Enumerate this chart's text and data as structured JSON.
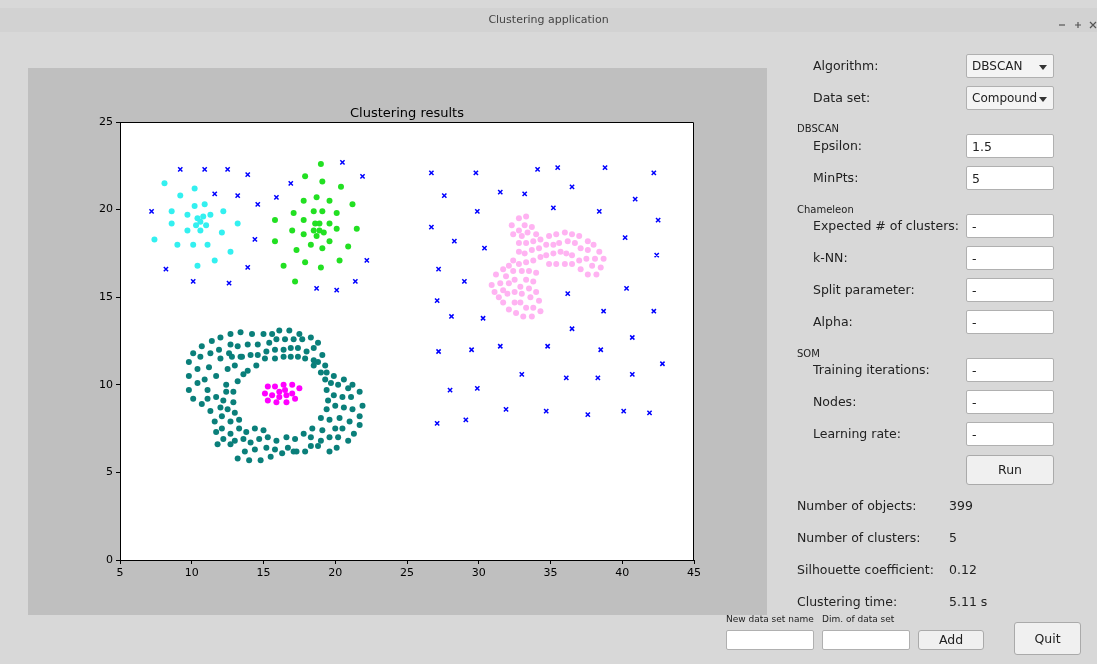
{
  "chart_data": [
    {
      "type": "scatter",
      "title": "Clustering results",
      "marker": "circle",
      "grid": false,
      "xlim": [
        5,
        45
      ],
      "xticks": [
        5,
        10,
        15,
        20,
        25,
        30,
        35,
        40,
        45
      ],
      "ylim": [
        0,
        25
      ],
      "yticks": [
        0,
        5,
        10,
        15,
        20,
        25
      ],
      "series": [
        {
          "color": "#0000ff",
          "marker": "cross",
          "x": [
            9.2,
            10.9,
            12.5,
            13.9,
            11.6,
            13.2,
            14.6,
            7.2,
            14.4,
            8.2,
            10.1,
            12.6,
            13.9,
            16.9,
            15.9,
            20.5,
            21.9,
            22.2,
            21.4,
            18.7,
            20.1,
            26.7,
            29.8,
            34.1,
            35.5,
            38.8,
            42.2,
            27.6,
            31.5,
            33.2,
            36.5,
            40.9,
            29.9,
            35.2,
            38.4,
            42.5,
            26.7,
            40.2,
            28.3,
            30.4,
            42.4,
            27.2,
            29.0,
            36.2,
            40.3,
            27.1,
            28.1,
            30.3,
            38.7,
            42.2,
            36.5,
            40.7,
            27.2,
            29.5,
            31.5,
            34.8,
            38.5,
            42.8,
            33.0,
            36.1,
            38.3,
            40.7,
            28.0,
            29.9,
            31.9,
            34.7,
            37.6,
            40.1,
            41.9,
            27.1,
            29.1
          ],
          "values": [
            22.3,
            22.3,
            22.3,
            22.0,
            20.9,
            20.8,
            20.3,
            19.9,
            18.3,
            16.6,
            15.9,
            15.8,
            16.7,
            21.5,
            20.7,
            22.7,
            21.9,
            17.1,
            15.9,
            15.5,
            15.4,
            22.1,
            22.1,
            22.3,
            22.4,
            22.4,
            22.1,
            20.8,
            21.0,
            20.9,
            21.3,
            20.6,
            19.9,
            20.1,
            19.9,
            19.4,
            19.0,
            18.4,
            18.2,
            17.8,
            17.4,
            16.6,
            15.9,
            15.2,
            15.5,
            14.8,
            13.9,
            13.8,
            14.2,
            14.2,
            13.2,
            12.7,
            11.9,
            12.0,
            12.2,
            12.2,
            12.0,
            11.2,
            10.6,
            10.4,
            10.4,
            10.6,
            9.7,
            9.8,
            8.6,
            8.5,
            8.3,
            8.5,
            8.4,
            7.8,
            8.0
          ]
        },
        {
          "color": "#33f0f0",
          "x": [
            8.1,
            10.2,
            9.2,
            10.2,
            10.9,
            8.6,
            9.7,
            12.2,
            11.3,
            10.4,
            10.8,
            10.6,
            8.6,
            10.3,
            11.0,
            13.2,
            9.7,
            10.6,
            12.1,
            7.4,
            9.0,
            10.1,
            11.1,
            12.7,
            11.6,
            10.4
          ],
          "values": [
            21.5,
            21.2,
            20.8,
            20.2,
            20.3,
            19.9,
            19.7,
            19.9,
            19.7,
            19.5,
            19.6,
            19.3,
            19.2,
            19.1,
            19.1,
            19.2,
            18.8,
            18.8,
            18.7,
            18.3,
            18.0,
            18.0,
            18.0,
            17.6,
            17.1,
            16.8
          ]
        },
        {
          "color": "#22e022",
          "x": [
            19.0,
            17.9,
            19.1,
            20.4,
            17.8,
            18.7,
            19.6,
            21.2,
            17.1,
            18.5,
            19.1,
            20.1,
            15.8,
            17.8,
            18.6,
            18.9,
            19.6,
            17.0,
            18.5,
            18.9,
            19.2,
            20.1,
            21.5,
            17.8,
            18.7,
            15.8,
            18.3,
            19.6,
            17.3,
            19.1,
            20.9,
            20.3,
            16.4,
            17.9,
            19.0,
            17.2
          ],
          "values": [
            22.6,
            21.9,
            21.6,
            21.3,
            20.5,
            20.7,
            20.5,
            20.3,
            19.8,
            19.9,
            19.9,
            19.8,
            19.4,
            19.4,
            19.2,
            19.2,
            19.2,
            18.8,
            18.8,
            18.8,
            18.7,
            18.9,
            18.9,
            18.6,
            18.5,
            18.2,
            18.0,
            18.2,
            17.7,
            17.8,
            17.9,
            17.1,
            16.8,
            17.0,
            16.7,
            15.9
          ]
        },
        {
          "color": "#0a7f7a",
          "x": [
            12.7,
            13.4,
            14.2,
            15.0,
            15.6,
            16.1,
            16.8,
            17.5,
            18.3,
            12.0,
            11.4,
            10.7,
            12.7,
            13.2,
            13.9,
            14.6,
            15.4,
            15.9,
            16.5,
            17.1,
            17.7,
            18.8,
            10.1,
            11.3,
            11.9,
            12.6,
            13.4,
            14.1,
            14.6,
            15.2,
            15.8,
            16.4,
            16.9,
            17.4,
            18.0,
            18.5,
            19.1,
            9.8,
            10.6,
            12.0,
            12.8,
            13.5,
            15.1,
            15.8,
            16.4,
            16.9,
            17.4,
            17.9,
            18.5,
            18.8,
            19.3,
            10.4,
            11.2,
            12.5,
            13.0,
            13.9,
            14.5,
            18.5,
            19.0,
            19.4,
            19.9,
            9.8,
            10.9,
            11.7,
            13.2,
            13.6,
            19.3,
            19.7,
            20.6,
            21.2,
            10.4,
            12.4,
            9.8,
            11.1,
            11.7,
            12.4,
            12.9,
            19.4,
            20.2,
            20.9,
            21.7,
            10.1,
            10.7,
            11.1,
            12.2,
            12.9,
            19.9,
            20.5,
            21.1,
            19.5,
            21.9,
            11.3,
            12.0,
            12.5,
            13.0,
            19.4,
            20.0,
            20.6,
            21.2,
            11.6,
            12.1,
            12.7,
            13.3,
            19.0,
            19.6,
            20.3,
            21.0,
            21.7,
            21.7,
            11.7,
            12.1,
            12.7,
            13.3,
            13.8,
            14.4,
            15.0,
            18.4,
            19.1,
            20.0,
            20.5,
            21.3,
            12.2,
            13.0,
            13.6,
            14.1,
            14.7,
            15.3,
            15.9,
            16.6,
            17.2,
            17.8,
            18.3,
            19.0,
            19.6,
            20.2,
            20.9,
            11.8,
            12.7,
            13.7,
            14.4,
            15.2,
            15.8,
            16.7,
            17.3,
            17.9,
            18.3,
            18.8,
            19.6,
            20.1,
            13.2,
            14.0,
            14.8,
            15.5,
            16.3,
            17.1
          ],
          "values": [
            12.9,
            13.0,
            12.9,
            12.9,
            12.9,
            13.1,
            13.1,
            12.9,
            12.7,
            12.7,
            12.5,
            12.2,
            12.3,
            12.2,
            12.3,
            12.3,
            12.4,
            12.6,
            12.6,
            12.6,
            12.6,
            12.4,
            11.8,
            11.8,
            12.0,
            11.8,
            11.6,
            11.7,
            11.7,
            11.9,
            12.0,
            12.0,
            12.1,
            12.1,
            11.9,
            12.1,
            11.7,
            11.3,
            11.6,
            11.5,
            11.6,
            11.6,
            11.5,
            11.5,
            11.6,
            11.6,
            11.6,
            11.5,
            11.4,
            11.3,
            11.1,
            10.9,
            11.0,
            10.9,
            11.1,
            10.8,
            11.1,
            11.1,
            10.7,
            10.7,
            10.5,
            10.5,
            10.3,
            10.5,
            10.2,
            10.6,
            10.3,
            10.1,
            10.3,
            10.0,
            10.1,
            10.0,
            9.7,
            9.7,
            9.3,
            9.6,
            9.6,
            9.7,
            10.0,
            9.8,
            9.6,
            9.2,
            8.9,
            9.2,
            9.1,
            9.0,
            9.4,
            9.3,
            9.3,
            9.1,
            8.8,
            8.5,
            8.7,
            8.6,
            8.4,
            8.6,
            8.8,
            8.7,
            8.6,
            7.9,
            8.2,
            7.9,
            8.0,
            8.1,
            8.0,
            8.1,
            7.9,
            8.2,
            7.7,
            7.3,
            7.5,
            7.2,
            7.5,
            7.3,
            7.5,
            7.4,
            7.5,
            7.4,
            7.5,
            7.5,
            7.2,
            6.9,
            6.8,
            6.9,
            6.7,
            6.9,
            7.0,
            6.8,
            7.0,
            6.9,
            7.2,
            7.0,
            6.8,
            7.0,
            7.0,
            6.8,
            6.6,
            6.6,
            6.2,
            6.3,
            6.4,
            6.3,
            6.4,
            6.2,
            6.2,
            6.5,
            6.5,
            6.2,
            6.4,
            5.8,
            5.7,
            5.7,
            5.9,
            6.1,
            6.2
          ]
        },
        {
          "color": "#ff00ff",
          "x": [
            15.3,
            15.8,
            16.4,
            17.0,
            17.5,
            15.1,
            15.6,
            16.1,
            16.5,
            17.0,
            16.1,
            16.6,
            15.3,
            15.9,
            16.6,
            17.2
          ],
          "values": [
            9.9,
            9.9,
            10.0,
            10.0,
            9.8,
            9.5,
            9.4,
            9.6,
            9.7,
            9.5,
            9.3,
            9.4,
            9.1,
            9.0,
            9.0,
            9.2
          ]
        },
        {
          "color": "#ffb3f2",
          "x": [
            32.8,
            33.3,
            32.3,
            33.2,
            33.7,
            32.4,
            32.8,
            33.4,
            34.0,
            33.0,
            32.8,
            33.3,
            33.8,
            34.3,
            34.9,
            35.4,
            36.0,
            36.5,
            37.0,
            37.6,
            38.0,
            32.8,
            33.2,
            33.7,
            34.2,
            34.7,
            35.2,
            35.6,
            36.2,
            36.7,
            37.1,
            37.6,
            38.4,
            32.4,
            32.8,
            33.3,
            33.8,
            34.3,
            34.7,
            35.2,
            35.7,
            36.1,
            36.5,
            37.0,
            37.5,
            38.1,
            38.7,
            31.7,
            32.1,
            32.4,
            33.0,
            33.5,
            34.0,
            34.9,
            35.4,
            36.0,
            36.5,
            37.1,
            37.9,
            38.5,
            31.2,
            31.9,
            32.5,
            33.3,
            33.8,
            37.6,
            38.2,
            30.9,
            31.5,
            32.1,
            32.9,
            33.5,
            31.1,
            31.7,
            32.0,
            32.5,
            33.0,
            34.0,
            31.4,
            32.5,
            32.9,
            33.6,
            34.2,
            31.7,
            33.3,
            33.8,
            32.1,
            32.6,
            33.1,
            33.7,
            34.3
          ],
          "values": [
            19.5,
            19.6,
            19.1,
            19.1,
            19.0,
            18.6,
            18.8,
            18.7,
            18.6,
            18.5,
            18.1,
            18.1,
            18.2,
            18.3,
            18.5,
            18.6,
            18.7,
            18.6,
            18.5,
            18.2,
            18.0,
            17.6,
            17.5,
            17.7,
            17.8,
            18.0,
            18.0,
            18.1,
            18.2,
            18.1,
            17.8,
            17.7,
            17.6,
            17.1,
            16.9,
            17.0,
            17.1,
            17.3,
            17.4,
            17.5,
            17.6,
            17.5,
            17.4,
            17.1,
            17.2,
            17.2,
            17.2,
            16.6,
            16.8,
            16.5,
            16.5,
            16.5,
            16.4,
            16.9,
            16.9,
            16.9,
            16.9,
            16.6,
            16.8,
            16.7,
            16.3,
            16.2,
            16.0,
            16.0,
            15.9,
            16.3,
            16.3,
            15.7,
            15.8,
            15.8,
            15.6,
            15.5,
            15.3,
            15.4,
            15.2,
            15.3,
            15.2,
            15.3,
            15.0,
            14.7,
            14.7,
            15.0,
            14.8,
            14.7,
            14.4,
            14.4,
            14.3,
            14.1,
            13.9,
            13.9,
            14.2
          ]
        }
      ]
    },
    {
      "type": "other",
      "title": "Clustering application",
      "annotations": [
        "Algorithm:",
        "DBSCAN",
        "Data set:",
        "Compound",
        "DBSCAN",
        "Epsilon:",
        "1.5",
        "MinPts:",
        "5",
        "Chameleon",
        "Expected # of clusters:",
        "-",
        "k-NN:",
        "-",
        "Split parameter:",
        "-",
        "Alpha:",
        "-",
        "SOM",
        "Training iterations:",
        "-",
        "Nodes:",
        "-",
        "Learning rate:",
        "-",
        "Run",
        "Number of objects:",
        "399",
        "Number of clusters:",
        "5",
        "Silhouette coefficient:",
        "0.12",
        "Clustering time:",
        "5.11 s",
        "New data set name",
        "Dim. of data set",
        "Add",
        "Quit"
      ]
    }
  ]
}
